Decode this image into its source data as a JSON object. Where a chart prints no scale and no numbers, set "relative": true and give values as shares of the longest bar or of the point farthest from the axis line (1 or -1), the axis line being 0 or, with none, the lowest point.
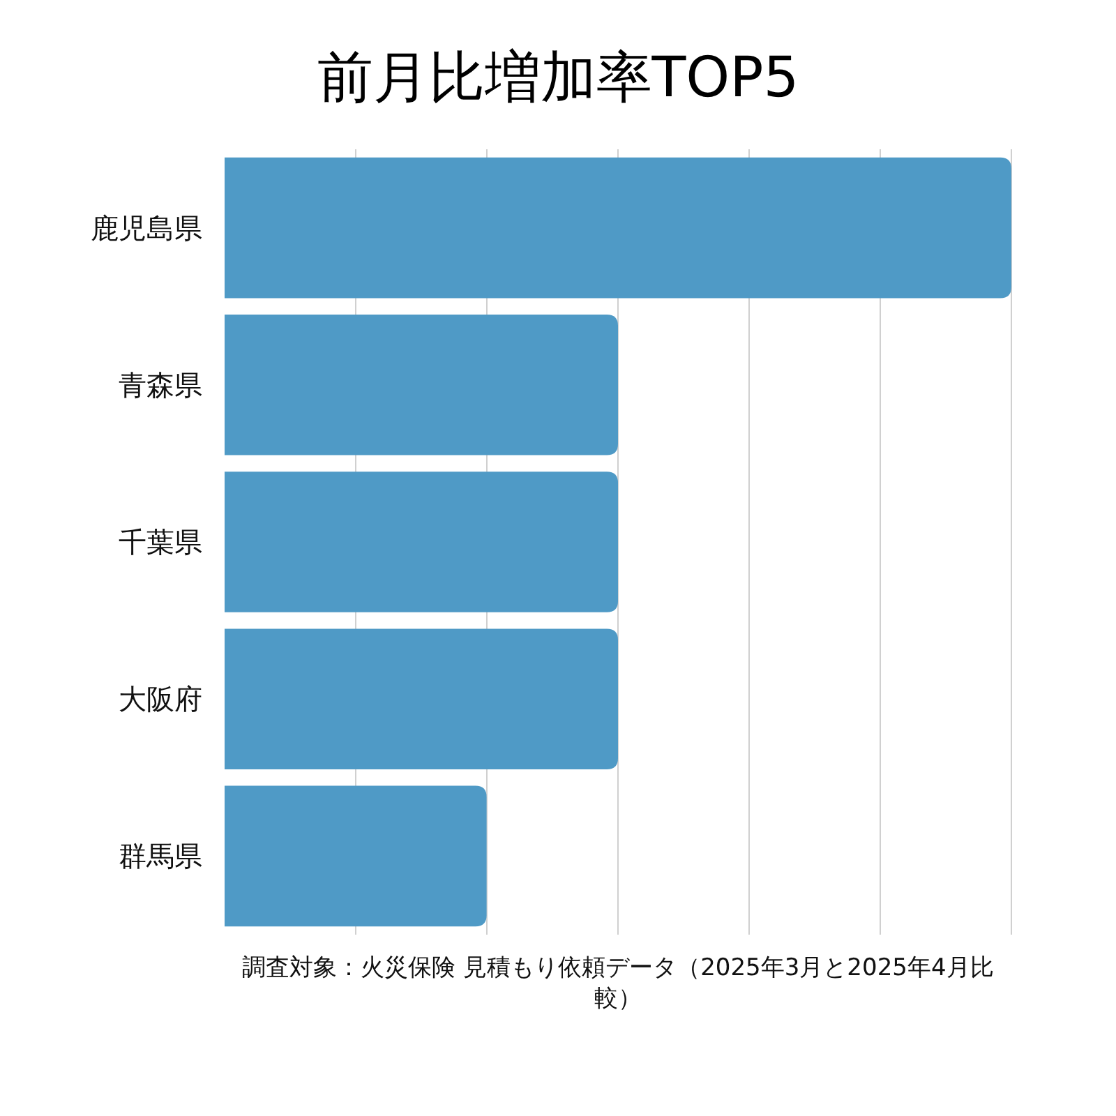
{
  "chart_data": {
    "type": "bar",
    "orientation": "horizontal",
    "relative": true,
    "title": "前月比増加率TOP5",
    "categories": [
      "鹿児島県",
      "青森県",
      "千葉県",
      "大阪府",
      "群馬県"
    ],
    "values": [
      1,
      0.5,
      0.5,
      0.5,
      0.333
    ],
    "color": "#4f9ac6",
    "grid": "x",
    "annotations": [
      "調査対象：火災保険 見積もり依頼データ（2025年3月と2025年4月比較）"
    ]
  }
}
